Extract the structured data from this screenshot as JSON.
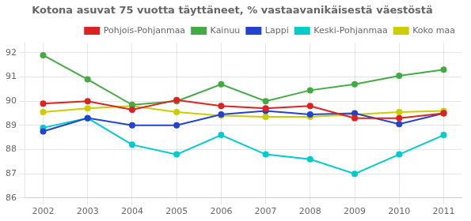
{
  "chart_data": {
    "type": "line",
    "title": "Kotona asuvat 75 vuotta täyttäneet, % vastaavanikäisestä väestöstä",
    "x": [
      2002,
      2003,
      2004,
      2005,
      2006,
      2007,
      2008,
      2009,
      2010,
      2011
    ],
    "xlim": [
      2001.6,
      2011.4
    ],
    "xticks": [
      2002,
      2003,
      2004,
      2005,
      2006,
      2007,
      2008,
      2009,
      2010,
      2011
    ],
    "series": [
      {
        "name": "Pohjois-Pohjanmaa",
        "color": "#dd2222",
        "values": [
          89.9,
          90.0,
          89.65,
          90.05,
          89.8,
          89.7,
          89.8,
          89.3,
          89.3,
          89.5
        ]
      },
      {
        "name": "Kainuu",
        "color": "#44aa44",
        "values": [
          91.9,
          90.9,
          89.85,
          90.0,
          90.7,
          90.0,
          90.45,
          90.7,
          91.05,
          91.3
        ]
      },
      {
        "name": "Lappi",
        "color": "#2244cc",
        "values": [
          88.75,
          89.3,
          89.0,
          89.0,
          89.45,
          89.6,
          89.45,
          89.5,
          89.05,
          89.5
        ]
      },
      {
        "name": "Keski-Pohjanmaa",
        "color": "#00cccc",
        "values": [
          88.9,
          89.3,
          88.2,
          87.8,
          88.6,
          87.8,
          87.6,
          87.0,
          87.8,
          88.6
        ]
      },
      {
        "name": "Koko maa",
        "color": "#cccc00",
        "values": [
          89.55,
          89.7,
          89.8,
          89.55,
          89.4,
          89.35,
          89.35,
          89.45,
          89.55,
          89.6
        ]
      }
    ],
    "ylim": [
      86,
      92.4
    ],
    "yticks": [
      86,
      87,
      88,
      89,
      90,
      91,
      92
    ],
    "grid": true,
    "legend": "upper right",
    "marker": "circle"
  }
}
